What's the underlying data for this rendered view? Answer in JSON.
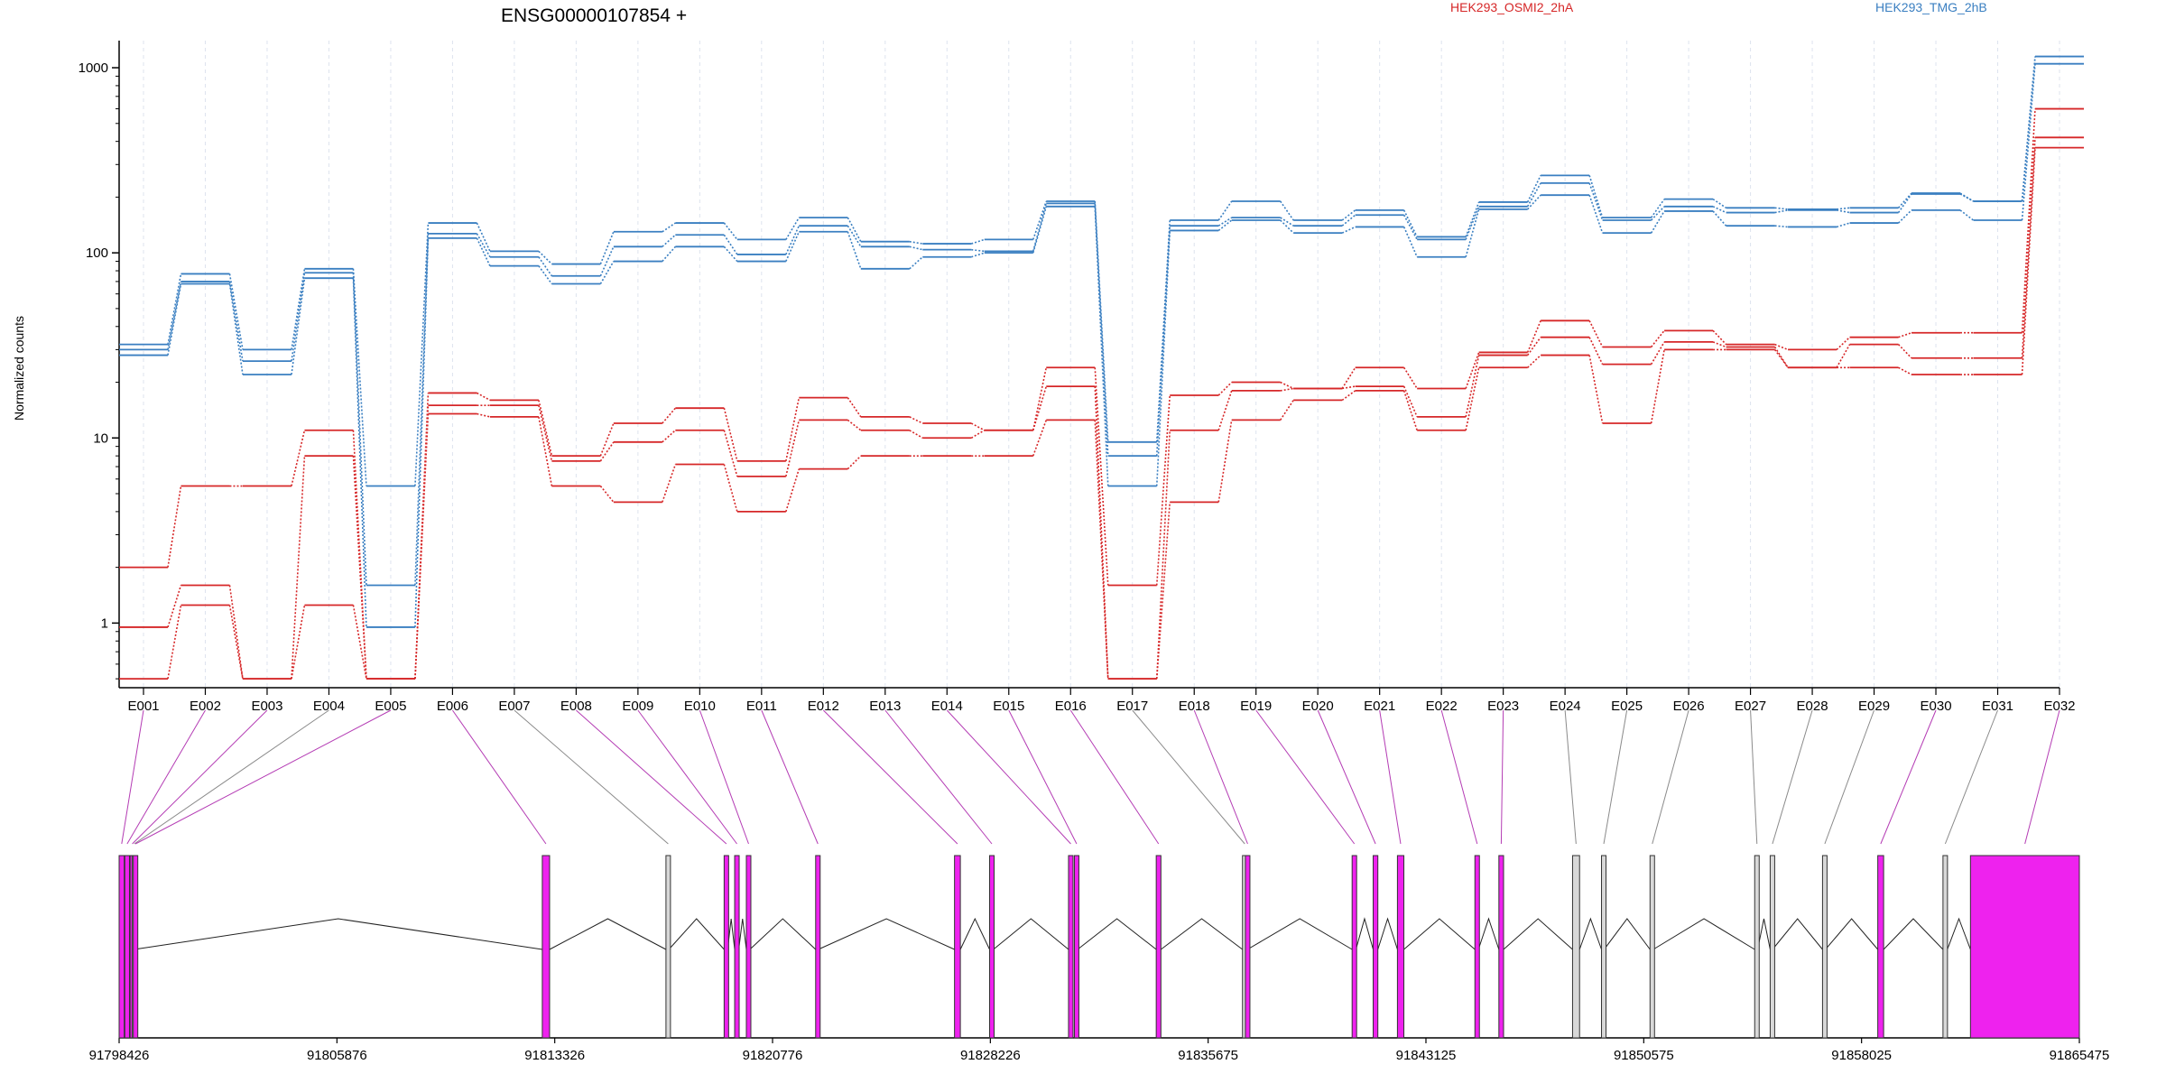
{
  "chart_data": {
    "type": "line",
    "title": "ENSG00000107854 +",
    "ylabel": "Normalized counts",
    "xlabel": "",
    "yscale": "log",
    "ylim": [
      0.5,
      1400
    ],
    "yticks": [
      "1",
      "10",
      "100",
      "1000"
    ],
    "categories": [
      "E001",
      "E002",
      "E003",
      "E004",
      "E005",
      "E006",
      "E007",
      "E008",
      "E009",
      "E010",
      "E011",
      "E012",
      "E013",
      "E014",
      "E015",
      "E016",
      "E017",
      "E018",
      "E019",
      "E020",
      "E021",
      "E022",
      "E023",
      "E024",
      "E025",
      "E026",
      "E027",
      "E028",
      "E029",
      "E030",
      "E031",
      "E032"
    ],
    "legend": [
      {
        "name": "HEK293_OSMI2_2hA",
        "color": "#d62728"
      },
      {
        "name": "HEK293_TMG_2hB",
        "color": "#3a7fc1"
      }
    ],
    "series": [
      {
        "group": "HEK293_TMG_2hB",
        "color": "#3a7fc1",
        "values": [
          32,
          77,
          30,
          82,
          5.5,
          145,
          102,
          87,
          130,
          145,
          118,
          155,
          115,
          112,
          118,
          190,
          9.5,
          150,
          190,
          150,
          170,
          122,
          188,
          262,
          155,
          195,
          175,
          172,
          175,
          210,
          190,
          1150
        ]
      },
      {
        "group": "HEK293_TMG_2hB",
        "color": "#3a7fc1",
        "values": [
          30,
          70,
          26,
          78,
          1.6,
          127,
          95,
          75,
          108,
          125,
          98,
          140,
          108,
          104,
          102,
          185,
          8,
          140,
          155,
          140,
          160,
          118,
          178,
          238,
          150,
          178,
          165,
          170,
          165,
          208,
          190,
          1150
        ]
      },
      {
        "group": "HEK293_TMG_2hB",
        "color": "#3a7fc1",
        "values": [
          28,
          68,
          22,
          73,
          0.95,
          120,
          85,
          68,
          90,
          108,
          90,
          130,
          82,
          95,
          100,
          178,
          5.5,
          132,
          150,
          128,
          138,
          95,
          172,
          205,
          128,
          168,
          140,
          138,
          145,
          170,
          150,
          1050
        ]
      },
      {
        "group": "HEK293_OSMI2_2hA",
        "color": "#d62728",
        "values": [
          2,
          5.5,
          5.5,
          11,
          0.5,
          17.5,
          16,
          8,
          12,
          14.5,
          7.5,
          16.5,
          13,
          12,
          11,
          24,
          1.6,
          17,
          20,
          18.5,
          24,
          18.5,
          29,
          43,
          31,
          38,
          32,
          30,
          35,
          37,
          37,
          600
        ]
      },
      {
        "group": "HEK293_OSMI2_2hA",
        "color": "#d62728",
        "values": [
          0.95,
          1.6,
          0.5,
          8,
          0.5,
          15,
          15,
          7.5,
          9.5,
          11,
          6.2,
          12.5,
          11,
          10,
          11,
          19,
          0.5,
          11,
          18,
          18.5,
          19,
          13,
          28,
          35,
          25,
          33,
          31,
          24,
          32,
          27,
          27,
          420
        ]
      },
      {
        "group": "HEK293_OSMI2_2hA",
        "color": "#d62728",
        "values": [
          0.5,
          1.25,
          0.5,
          1.25,
          0.5,
          13.5,
          13,
          5.5,
          4.5,
          7.2,
          4,
          6.8,
          8,
          8,
          8,
          12.5,
          0.5,
          4.5,
          12.5,
          16,
          18,
          11,
          24,
          28,
          12,
          30,
          30,
          24,
          24,
          22,
          22,
          370
        ]
      }
    ],
    "genome": {
      "ticks": [
        "91798426",
        "91805876",
        "91813326",
        "91820776",
        "91828226",
        "91835675",
        "91843125",
        "91850575",
        "91858025",
        "91865475"
      ],
      "range": [
        91798426,
        91865475
      ],
      "exon_hex_colors": {
        "highlighted": "#ee22ee",
        "normal": "#d8d8d8"
      },
      "exons": [
        {
          "label": "E001",
          "start": 91798426,
          "end": 91798600,
          "highlight": true
        },
        {
          "label": "E002",
          "start": 91798620,
          "end": 91798780,
          "highlight": true
        },
        {
          "label": "E003",
          "start": 91798800,
          "end": 91798860,
          "highlight": true
        },
        {
          "label": "E004",
          "start": 91798870,
          "end": 91798900,
          "highlight": false
        },
        {
          "label": "E005",
          "start": 91798910,
          "end": 91798940,
          "highlight": true
        },
        {
          "label": "E006",
          "start": 91812900,
          "end": 91813150,
          "highlight": true
        },
        {
          "label": "E007",
          "start": 91817130,
          "end": 91817230,
          "highlight": false
        },
        {
          "label": "E008",
          "start": 91819120,
          "end": 91819240,
          "highlight": true
        },
        {
          "label": "E009",
          "start": 91819480,
          "end": 91819620,
          "highlight": true
        },
        {
          "label": "E010",
          "start": 91819880,
          "end": 91820000,
          "highlight": true
        },
        {
          "label": "E011",
          "start": 91822250,
          "end": 91822340,
          "highlight": true
        },
        {
          "label": "E012",
          "start": 91827000,
          "end": 91827200,
          "highlight": true
        },
        {
          "label": "E013",
          "start": 91828200,
          "end": 91828330,
          "highlight": true
        },
        {
          "label": "E014",
          "start": 91830900,
          "end": 91831020,
          "highlight": true
        },
        {
          "label": "E015",
          "start": 91831100,
          "end": 91831210,
          "highlight": true
        },
        {
          "label": "E016",
          "start": 91833900,
          "end": 91834060,
          "highlight": true
        },
        {
          "label": "E017",
          "start": 91836850,
          "end": 91836950,
          "highlight": false
        },
        {
          "label": "E018",
          "start": 91836950,
          "end": 91837020,
          "highlight": true
        },
        {
          "label": "E019",
          "start": 91840600,
          "end": 91840730,
          "highlight": true
        },
        {
          "label": "E020",
          "start": 91841320,
          "end": 91841480,
          "highlight": true
        },
        {
          "label": "E021",
          "start": 91842150,
          "end": 91842370,
          "highlight": true
        },
        {
          "label": "E022",
          "start": 91844800,
          "end": 91844920,
          "highlight": true
        },
        {
          "label": "E023",
          "start": 91845620,
          "end": 91845780,
          "highlight": true
        },
        {
          "label": "E024",
          "start": 91848140,
          "end": 91848380,
          "highlight": false
        },
        {
          "label": "E025",
          "start": 91849130,
          "end": 91849220,
          "highlight": false
        },
        {
          "label": "E026",
          "start": 91850790,
          "end": 91850900,
          "highlight": false
        },
        {
          "label": "E027",
          "start": 91854370,
          "end": 91854470,
          "highlight": false
        },
        {
          "label": "E028",
          "start": 91854900,
          "end": 91854980,
          "highlight": false
        },
        {
          "label": "E029",
          "start": 91856690,
          "end": 91856790,
          "highlight": false
        },
        {
          "label": "E030",
          "start": 91858580,
          "end": 91858780,
          "highlight": true
        },
        {
          "label": "E031",
          "start": 91860810,
          "end": 91860960,
          "highlight": false
        },
        {
          "label": "E032",
          "start": 91861750,
          "end": 91865475,
          "highlight": true
        }
      ]
    }
  }
}
